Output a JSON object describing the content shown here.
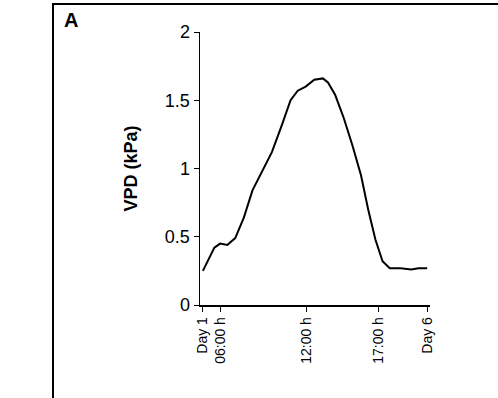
{
  "chart_data": {
    "type": "line",
    "annotations": [
      "A"
    ],
    "y_label": "VPD (kPa)",
    "x": [
      4.8,
      5.6,
      6.0,
      6.5,
      7.05,
      7.65,
      8.25,
      9.0,
      9.6,
      10.3,
      10.9,
      11.4,
      11.95,
      12.55,
      13.15,
      13.5,
      14.0,
      14.6,
      15.2,
      15.8,
      16.3,
      16.8,
      17.3,
      17.8,
      18.55,
      19.3,
      19.8,
      20.4
    ],
    "values": [
      0.25,
      0.42,
      0.45,
      0.44,
      0.49,
      0.64,
      0.84,
      1.0,
      1.12,
      1.32,
      1.5,
      1.57,
      1.6,
      1.65,
      1.66,
      1.63,
      1.54,
      1.37,
      1.17,
      0.95,
      0.7,
      0.48,
      0.32,
      0.27,
      0.27,
      0.26,
      0.27,
      0.27
    ],
    "color": "#000000",
    "xlim": [
      4.6,
      20.6
    ],
    "xticks": [
      {
        "value": 4.8,
        "label": "Day 1"
      },
      {
        "value": 6,
        "label": "06:00 h"
      },
      {
        "value": 12,
        "label": "12:00 h"
      },
      {
        "value": 17,
        "label": "17:00 h"
      },
      {
        "value": 20.4,
        "label": "Day 6"
      }
    ],
    "ylim": [
      0,
      2
    ],
    "yticks": [
      0,
      0.5,
      1,
      1.5,
      2
    ],
    "grid": false
  }
}
